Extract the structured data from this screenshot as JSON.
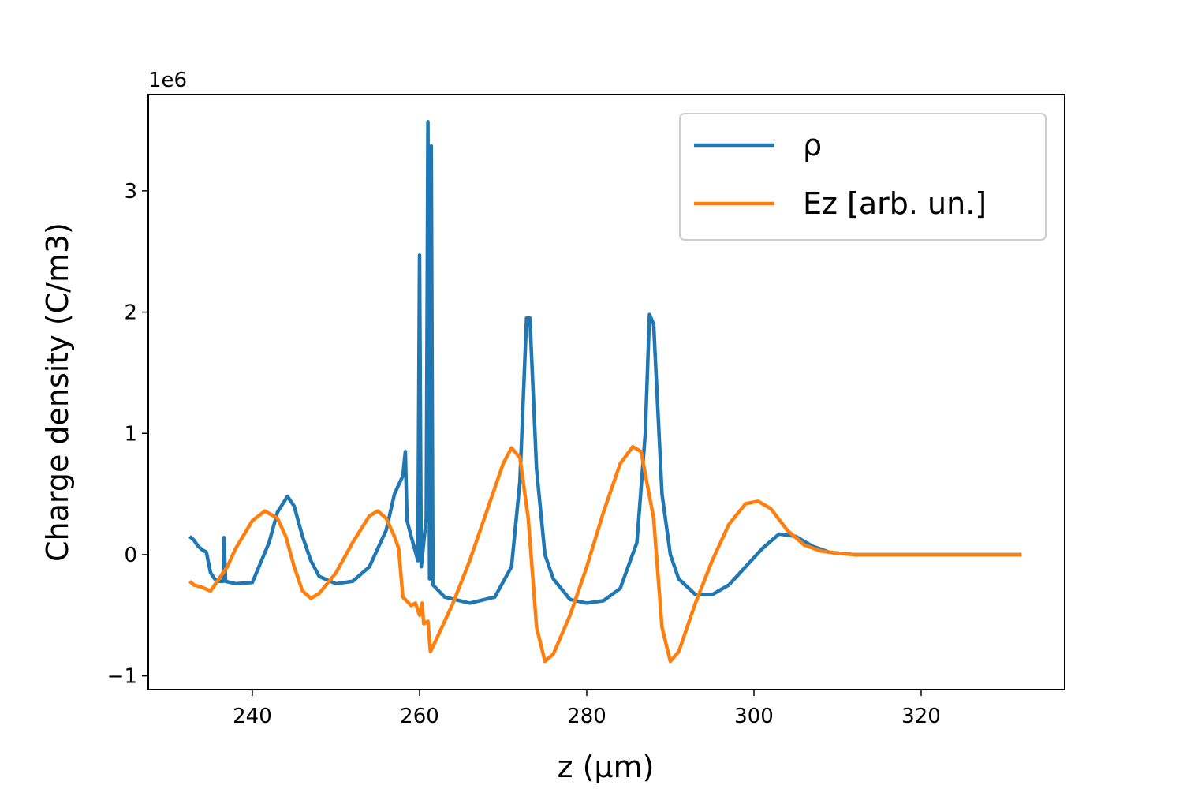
{
  "chart_data": {
    "type": "line",
    "xlabel": "z (μm)",
    "ylabel": "Charge density (C/m3)",
    "y_offset_label": "1e6",
    "xlim": [
      227.55,
      337.17
    ],
    "ylim": [
      -1.113,
      3.793
    ],
    "xticks": [
      240,
      260,
      280,
      300,
      320
    ],
    "yticks": [
      {
        "value": -1,
        "label": "−1"
      },
      0,
      1,
      2,
      3
    ],
    "legend": "upper right",
    "grid": false,
    "series": [
      {
        "name": "ρ",
        "color": "#1f77b4",
        "x": [
          232.5,
          233,
          233.5,
          234,
          234.5,
          235,
          235.5,
          236,
          236.5,
          236.6,
          236.8,
          238,
          240,
          242,
          243,
          244.2,
          245,
          246,
          247,
          248,
          250,
          252,
          254,
          256,
          257,
          258,
          258.3,
          258.5,
          259,
          259.8,
          260,
          260.2,
          260.8,
          261,
          261.2,
          261.4,
          261.6,
          263,
          266,
          269,
          271,
          272,
          272.8,
          273.2,
          274,
          275,
          276,
          278,
          280,
          282,
          284,
          286,
          287,
          287.5,
          288,
          289,
          290,
          291,
          293,
          295,
          297,
          299,
          301,
          303,
          305,
          307,
          309,
          312,
          332
        ],
        "values": [
          0.15,
          0.12,
          0.07,
          0.04,
          0.02,
          -0.15,
          -0.2,
          -0.22,
          -0.22,
          0.14,
          -0.22,
          -0.24,
          -0.23,
          0.1,
          0.35,
          0.48,
          0.4,
          0.15,
          -0.05,
          -0.18,
          -0.24,
          -0.22,
          -0.1,
          0.2,
          0.5,
          0.65,
          0.85,
          0.28,
          0.15,
          -0.05,
          2.47,
          -0.1,
          0.3,
          3.57,
          -0.2,
          3.37,
          -0.25,
          -0.35,
          -0.4,
          -0.35,
          -0.1,
          0.6,
          1.95,
          1.95,
          0.7,
          0.0,
          -0.2,
          -0.37,
          -0.4,
          -0.38,
          -0.28,
          0.1,
          1.0,
          1.98,
          1.9,
          0.5,
          0.0,
          -0.2,
          -0.33,
          -0.33,
          -0.25,
          -0.1,
          0.05,
          0.17,
          0.15,
          0.07,
          0.02,
          0.0,
          0.0
        ]
      },
      {
        "name": "Ez [arb. un.]",
        "color": "#ff7f0e",
        "x": [
          232.5,
          233,
          234,
          235,
          236,
          237,
          238,
          240,
          241.5,
          243,
          244,
          245,
          246,
          247,
          248,
          250,
          252,
          254,
          255,
          256,
          257,
          257.5,
          258,
          259,
          259.5,
          260,
          260.3,
          260.5,
          261,
          261.3,
          262,
          264,
          266,
          268,
          270,
          271,
          272,
          273,
          274,
          275,
          276,
          278,
          280,
          282,
          284,
          285.5,
          286.5,
          288,
          289,
          290,
          291,
          293,
          295,
          297,
          299,
          300.5,
          302,
          304,
          306,
          308,
          310,
          312,
          332
        ],
        "values": [
          -0.22,
          -0.25,
          -0.27,
          -0.3,
          -0.2,
          -0.1,
          0.05,
          0.28,
          0.36,
          0.3,
          0.15,
          -0.1,
          -0.3,
          -0.36,
          -0.32,
          -0.15,
          0.1,
          0.32,
          0.36,
          0.3,
          0.15,
          0.05,
          -0.35,
          -0.42,
          -0.4,
          -0.5,
          -0.4,
          -0.57,
          -0.55,
          -0.8,
          -0.7,
          -0.4,
          -0.05,
          0.35,
          0.75,
          0.88,
          0.8,
          0.3,
          -0.6,
          -0.88,
          -0.82,
          -0.5,
          -0.1,
          0.35,
          0.75,
          0.89,
          0.85,
          0.3,
          -0.6,
          -0.88,
          -0.8,
          -0.4,
          -0.05,
          0.25,
          0.42,
          0.44,
          0.38,
          0.2,
          0.08,
          0.03,
          0.01,
          0.0,
          0.0
        ]
      }
    ]
  }
}
